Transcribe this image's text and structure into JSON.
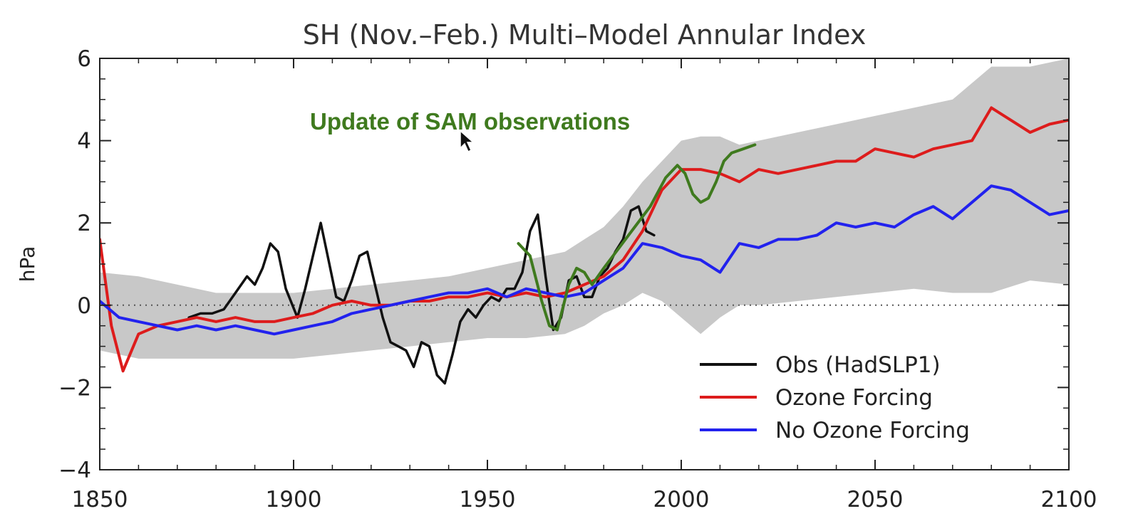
{
  "chart_data": {
    "type": "line",
    "title": "SH (Nov.–Feb.) Multi–Model Annular Index",
    "xlabel": "",
    "ylabel": "hPa",
    "xlim": [
      1850,
      2100
    ],
    "ylim": [
      -4,
      6
    ],
    "x_ticks": [
      "1850",
      "1900",
      "1950",
      "2000",
      "2050",
      "2100"
    ],
    "y_ticks": [
      "−4",
      "−2",
      "0",
      "2",
      "4",
      "6"
    ],
    "zero_line": "dotted",
    "legend_position": "bottom-right",
    "annotation": {
      "text": "Update of SAM observations",
      "color": "#3f7a1e"
    },
    "colors": {
      "obs": "#111111",
      "ozone": "#dd1c1c",
      "no_ozone": "#2222ee",
      "update": "#3f7a1e",
      "envelope": "#c8c8c8"
    },
    "envelope": {
      "x": [
        1850,
        1860,
        1870,
        1880,
        1890,
        1900,
        1910,
        1920,
        1930,
        1940,
        1950,
        1960,
        1970,
        1975,
        1980,
        1985,
        1990,
        1995,
        2000,
        2005,
        2010,
        2015,
        2020,
        2030,
        2040,
        2050,
        2060,
        2070,
        2080,
        2090,
        2100
      ],
      "upper": [
        0.8,
        0.7,
        0.5,
        0.3,
        0.3,
        0.3,
        0.4,
        0.5,
        0.6,
        0.7,
        0.9,
        1.1,
        1.3,
        1.6,
        1.9,
        2.4,
        3.0,
        3.5,
        4.0,
        4.1,
        4.1,
        3.9,
        4.0,
        4.2,
        4.4,
        4.6,
        4.8,
        5.0,
        5.8,
        5.8,
        6.0
      ],
      "lower": [
        -1.1,
        -1.3,
        -1.3,
        -1.3,
        -1.3,
        -1.3,
        -1.2,
        -1.1,
        -1.0,
        -0.9,
        -0.8,
        -0.8,
        -0.7,
        -0.5,
        -0.2,
        0.0,
        0.3,
        0.1,
        -0.3,
        -0.7,
        -0.3,
        0.0,
        0.0,
        0.1,
        0.2,
        0.3,
        0.4,
        0.3,
        0.3,
        0.6,
        0.5
      ]
    },
    "series": [
      {
        "name": "Obs (HadSLP1)",
        "x": [
          1873,
          1876,
          1879,
          1882,
          1885,
          1888,
          1890,
          1892,
          1894,
          1896,
          1898,
          1901,
          1903,
          1905,
          1907,
          1909,
          1911,
          1913,
          1915,
          1917,
          1919,
          1921,
          1923,
          1925,
          1927,
          1929,
          1931,
          1933,
          1935,
          1937,
          1939,
          1941,
          1943,
          1945,
          1947,
          1949,
          1951,
          1953,
          1955,
          1957,
          1959,
          1961,
          1963,
          1965,
          1967,
          1969,
          1971,
          1973,
          1975,
          1977,
          1979,
          1981,
          1983,
          1985,
          1987,
          1989,
          1991,
          1993
        ],
        "values": [
          -0.3,
          -0.2,
          -0.2,
          -0.1,
          0.3,
          0.7,
          0.5,
          0.9,
          1.5,
          1.3,
          0.4,
          -0.3,
          0.4,
          1.2,
          2.0,
          1.1,
          0.2,
          0.1,
          0.6,
          1.2,
          1.3,
          0.5,
          -0.3,
          -0.9,
          -1.0,
          -1.1,
          -1.5,
          -0.9,
          -1.0,
          -1.7,
          -1.9,
          -1.2,
          -0.4,
          -0.1,
          -0.3,
          0.0,
          0.2,
          0.1,
          0.4,
          0.4,
          0.8,
          1.8,
          2.2,
          0.7,
          -0.6,
          -0.3,
          0.6,
          0.7,
          0.2,
          0.2,
          0.7,
          0.9,
          1.3,
          1.6,
          2.3,
          2.4,
          1.8,
          1.7
        ]
      },
      {
        "name": "Ozone Forcing",
        "x": [
          1850,
          1853,
          1856,
          1860,
          1865,
          1870,
          1875,
          1880,
          1885,
          1890,
          1895,
          1900,
          1905,
          1910,
          1915,
          1920,
          1925,
          1930,
          1935,
          1940,
          1945,
          1950,
          1955,
          1960,
          1965,
          1970,
          1975,
          1980,
          1985,
          1990,
          1995,
          2000,
          2005,
          2010,
          2015,
          2020,
          2025,
          2030,
          2035,
          2040,
          2045,
          2050,
          2055,
          2060,
          2065,
          2070,
          2075,
          2080,
          2085,
          2090,
          2095,
          2100
        ],
        "values": [
          1.6,
          -0.5,
          -1.6,
          -0.7,
          -0.5,
          -0.4,
          -0.3,
          -0.4,
          -0.3,
          -0.4,
          -0.4,
          -0.3,
          -0.2,
          0.0,
          0.1,
          0.0,
          0.0,
          0.1,
          0.1,
          0.2,
          0.2,
          0.3,
          0.2,
          0.3,
          0.2,
          0.3,
          0.5,
          0.7,
          1.1,
          1.8,
          2.8,
          3.3,
          3.3,
          3.2,
          3.0,
          3.3,
          3.2,
          3.3,
          3.4,
          3.5,
          3.5,
          3.8,
          3.7,
          3.6,
          3.8,
          3.9,
          4.0,
          4.8,
          4.5,
          4.2,
          4.4,
          4.5
        ]
      },
      {
        "name": "No Ozone Forcing",
        "x": [
          1850,
          1855,
          1860,
          1865,
          1870,
          1875,
          1880,
          1885,
          1890,
          1895,
          1900,
          1905,
          1910,
          1915,
          1920,
          1925,
          1930,
          1935,
          1940,
          1945,
          1950,
          1955,
          1960,
          1965,
          1970,
          1975,
          1980,
          1985,
          1990,
          1995,
          2000,
          2005,
          2010,
          2015,
          2020,
          2025,
          2030,
          2035,
          2040,
          2045,
          2050,
          2055,
          2060,
          2065,
          2070,
          2075,
          2080,
          2085,
          2090,
          2095,
          2100
        ],
        "values": [
          0.1,
          -0.3,
          -0.4,
          -0.5,
          -0.6,
          -0.5,
          -0.6,
          -0.5,
          -0.6,
          -0.7,
          -0.6,
          -0.5,
          -0.4,
          -0.2,
          -0.1,
          0.0,
          0.1,
          0.2,
          0.3,
          0.3,
          0.4,
          0.2,
          0.4,
          0.3,
          0.2,
          0.3,
          0.6,
          0.9,
          1.5,
          1.4,
          1.2,
          1.1,
          0.8,
          1.5,
          1.4,
          1.6,
          1.6,
          1.7,
          2.0,
          1.9,
          2.0,
          1.9,
          2.2,
          2.4,
          2.1,
          2.5,
          2.9,
          2.8,
          2.5,
          2.2,
          2.3
        ]
      },
      {
        "name": "",
        "x": [
          1958,
          1961,
          1964,
          1966,
          1968,
          1971,
          1973,
          1975,
          1977,
          1980,
          1984,
          1988,
          1992,
          1996,
          1999,
          2001,
          2003,
          2005,
          2007,
          2009,
          2011,
          2013,
          2016,
          2019
        ],
        "values": [
          1.5,
          1.2,
          0.1,
          -0.5,
          -0.6,
          0.5,
          0.9,
          0.8,
          0.5,
          0.9,
          1.4,
          1.9,
          2.4,
          3.1,
          3.4,
          3.2,
          2.7,
          2.5,
          2.6,
          3.0,
          3.5,
          3.7,
          3.8,
          3.9
        ]
      }
    ]
  }
}
